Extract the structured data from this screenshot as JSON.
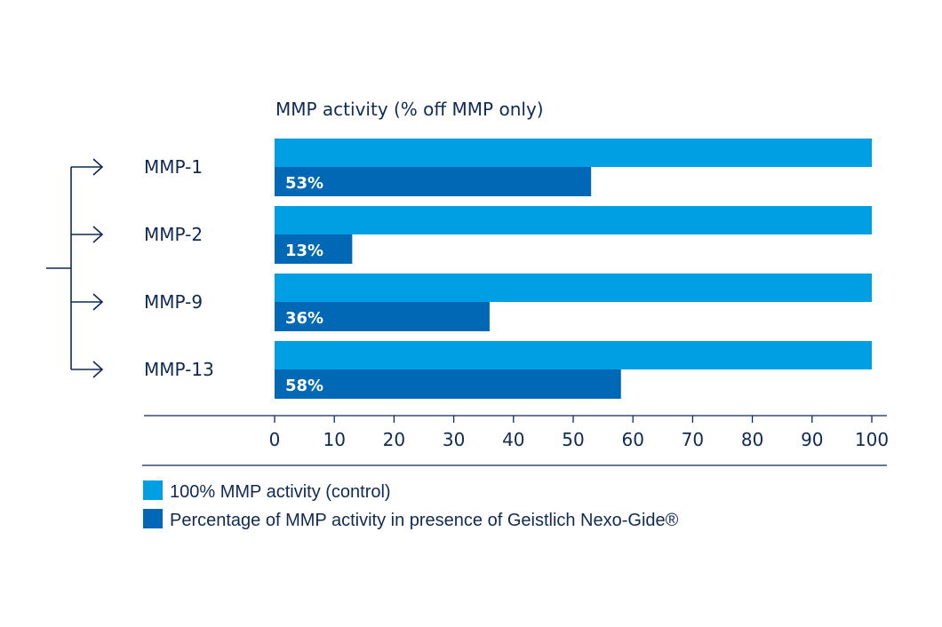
{
  "chart_data": {
    "type": "bar",
    "orientation": "horizontal",
    "title": "MMP activity (% off MMP only)",
    "categories": [
      "MMP-1",
      "MMP-2",
      "MMP-9",
      "MMP-13"
    ],
    "series": [
      {
        "name": "100% MMP activity (control)",
        "values": [
          100,
          100,
          100,
          100
        ],
        "color": "#009fe3"
      },
      {
        "name": "Percentage of MMP activity in presence of Geistlich Nexo-Gide®",
        "values": [
          53,
          13,
          36,
          58
        ],
        "color": "#0068b4",
        "labels": [
          "53%",
          "13%",
          "36%",
          "58%"
        ]
      }
    ],
    "xlim": [
      0,
      100
    ],
    "xticks": [
      "0",
      "10",
      "20",
      "30",
      "40",
      "50",
      "60",
      "70",
      "80",
      "90",
      "100"
    ],
    "grid": false,
    "legend_position": "bottom-left",
    "axis_color": "#0f2a55"
  }
}
